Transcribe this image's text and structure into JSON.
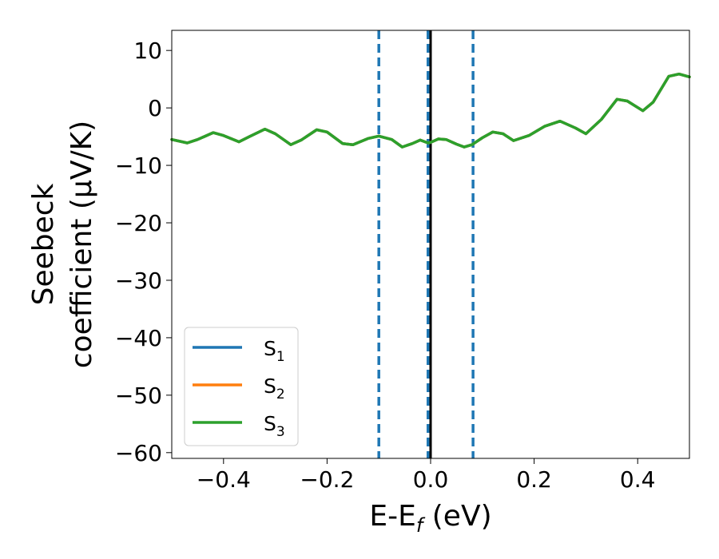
{
  "chart_data": {
    "type": "line",
    "title": "",
    "xlabel": {
      "main": "E-E",
      "sub": "f",
      "unit": " (eV)"
    },
    "ylabel": {
      "line1": "Seebeck",
      "line2": "coefficient  (μV/K)"
    },
    "xlim": [
      -0.5,
      0.5
    ],
    "ylim": [
      -61,
      13.5
    ],
    "xticks": [
      -0.4,
      -0.2,
      0.0,
      0.2,
      0.4
    ],
    "xtick_labels": [
      "−0.4",
      "−0.2",
      "0.0",
      "0.2",
      "0.4"
    ],
    "yticks": [
      10,
      0,
      -10,
      -20,
      -30,
      -40,
      -50,
      -60
    ],
    "ytick_labels": [
      "10",
      "0",
      "−10",
      "−20",
      "−30",
      "−40",
      "−50",
      "−60"
    ],
    "legend": {
      "position": "lower-left",
      "entries": [
        {
          "base": "S",
          "sub": "1",
          "color": "#1f77b4"
        },
        {
          "base": "S",
          "sub": "2",
          "color": "#ff7f0e"
        },
        {
          "base": "S",
          "sub": "3",
          "color": "#2ca02c"
        }
      ]
    },
    "x": [
      -0.5,
      -0.47,
      -0.45,
      -0.42,
      -0.4,
      -0.37,
      -0.35,
      -0.32,
      -0.3,
      -0.27,
      -0.25,
      -0.22,
      -0.2,
      -0.17,
      -0.15,
      -0.12,
      -0.1,
      -0.075,
      -0.055,
      -0.035,
      -0.02,
      -0.005,
      0.0,
      0.015,
      0.03,
      0.05,
      0.065,
      0.08,
      0.1,
      0.12,
      0.14,
      0.16,
      0.19,
      0.22,
      0.25,
      0.28,
      0.3,
      0.33,
      0.36,
      0.38,
      0.41,
      0.43,
      0.46,
      0.48,
      0.5
    ],
    "series": [
      {
        "color": "#1f77b4",
        "values": [
          -5.5,
          -6.1,
          -5.5,
          -4.3,
          -4.8,
          -5.9,
          -5.0,
          -3.7,
          -4.5,
          -6.4,
          -5.6,
          -3.8,
          -4.2,
          -6.2,
          -6.4,
          -5.3,
          -4.9,
          -5.5,
          -6.8,
          -6.2,
          -5.6,
          -6.1,
          -6.0,
          -5.4,
          -5.5,
          -6.3,
          -6.8,
          -6.4,
          -5.2,
          -4.2,
          -4.5,
          -5.7,
          -4.8,
          -3.2,
          -2.3,
          -3.5,
          -4.5,
          -2.0,
          1.5,
          1.2,
          -0.5,
          1.0,
          5.5,
          5.9,
          5.4
        ]
      },
      {
        "color": "#ff7f0e",
        "values": [
          -5.5,
          -6.1,
          -5.5,
          -4.3,
          -4.8,
          -5.9,
          -5.0,
          -3.7,
          -4.5,
          -6.4,
          -5.6,
          -3.8,
          -4.2,
          -6.2,
          -6.4,
          -5.3,
          -4.9,
          -5.5,
          -6.8,
          -6.2,
          -5.6,
          -6.1,
          -6.0,
          -5.4,
          -5.5,
          -6.3,
          -6.8,
          -6.4,
          -5.2,
          -4.2,
          -4.5,
          -5.7,
          -4.8,
          -3.2,
          -2.3,
          -3.5,
          -4.5,
          -2.0,
          1.5,
          1.2,
          -0.5,
          1.0,
          5.5,
          5.9,
          5.4
        ]
      },
      {
        "color": "#2ca02c",
        "values": [
          -5.5,
          -6.1,
          -5.5,
          -4.3,
          -4.8,
          -5.9,
          -5.0,
          -3.7,
          -4.5,
          -6.4,
          -5.6,
          -3.8,
          -4.2,
          -6.2,
          -6.4,
          -5.3,
          -4.9,
          -5.5,
          -6.8,
          -6.2,
          -5.6,
          -6.1,
          -6.0,
          -5.4,
          -5.5,
          -6.3,
          -6.8,
          -6.4,
          -5.2,
          -4.2,
          -4.5,
          -5.7,
          -4.8,
          -3.2,
          -2.3,
          -3.5,
          -4.5,
          -2.0,
          1.5,
          1.2,
          -0.5,
          1.0,
          5.5,
          5.9,
          5.4
        ]
      }
    ],
    "vlines": [
      {
        "x": -0.1,
        "style": "dashed",
        "color": "#1f77b4"
      },
      {
        "x": -0.005,
        "style": "dashed",
        "color": "#1f77b4"
      },
      {
        "x": 0.0,
        "style": "solid",
        "color": "#000000"
      },
      {
        "x": 0.082,
        "style": "dashed",
        "color": "#1f77b4"
      }
    ],
    "grid": false
  }
}
